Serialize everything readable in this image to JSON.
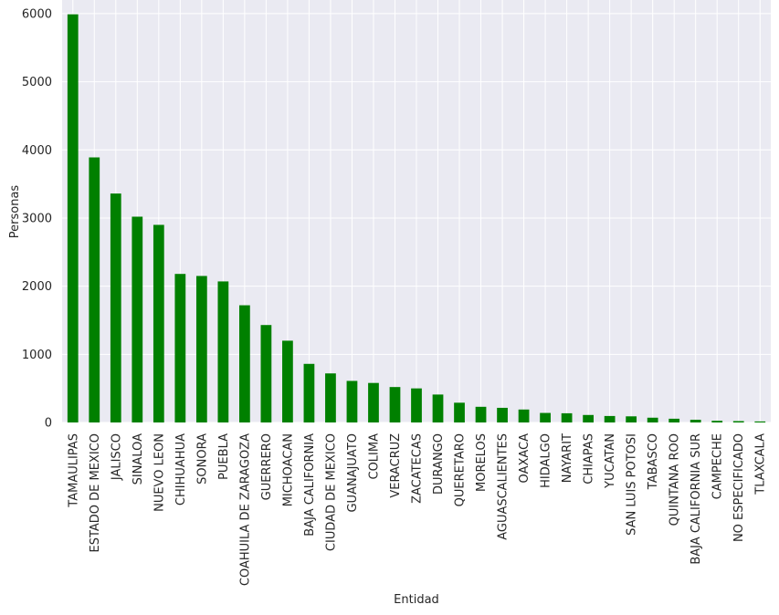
{
  "chart_data": {
    "type": "bar",
    "xlabel": "Entidad",
    "ylabel": "Personas",
    "ylim": [
      0,
      6200
    ],
    "yticks": [
      0,
      1000,
      2000,
      3000,
      4000,
      5000,
      6000
    ],
    "grid": true,
    "legend": "none",
    "bar_color": "#008000",
    "background_color": "#EAEAF2",
    "grid_color": "#ffffff",
    "categories": [
      "TAMAULIPAS",
      "ESTADO DE MEXICO",
      "JALISCO",
      "SINALOA",
      "NUEVO LEON",
      "CHIHUAHUA",
      "SONORA",
      "PUEBLA",
      "COAHUILA DE ZARAGOZA",
      "GUERRERO",
      "MICHOACAN",
      "BAJA CALIFORNIA",
      "CIUDAD DE MEXICO",
      "GUANAJUATO",
      "COLIMA",
      "VERACRUZ",
      "ZACATECAS",
      "DURANGO",
      "QUERETARO",
      "MORELOS",
      "AGUASCALIENTES",
      "OAXACA",
      "HIDALGO",
      "NAYARIT",
      "CHIAPAS",
      "YUCATAN",
      "SAN LUIS POTOSI",
      "TABASCO",
      "QUINTANA ROO",
      "BAJA CALIFORNIA SUR",
      "CAMPECHE",
      "NO ESPECIFICADO",
      "TLAXCALA"
    ],
    "values": [
      5990,
      3890,
      3360,
      3020,
      2900,
      2180,
      2150,
      2070,
      1720,
      1430,
      1200,
      860,
      720,
      610,
      580,
      520,
      500,
      410,
      290,
      230,
      215,
      190,
      140,
      135,
      110,
      95,
      90,
      70,
      55,
      40,
      25,
      20,
      15
    ]
  }
}
